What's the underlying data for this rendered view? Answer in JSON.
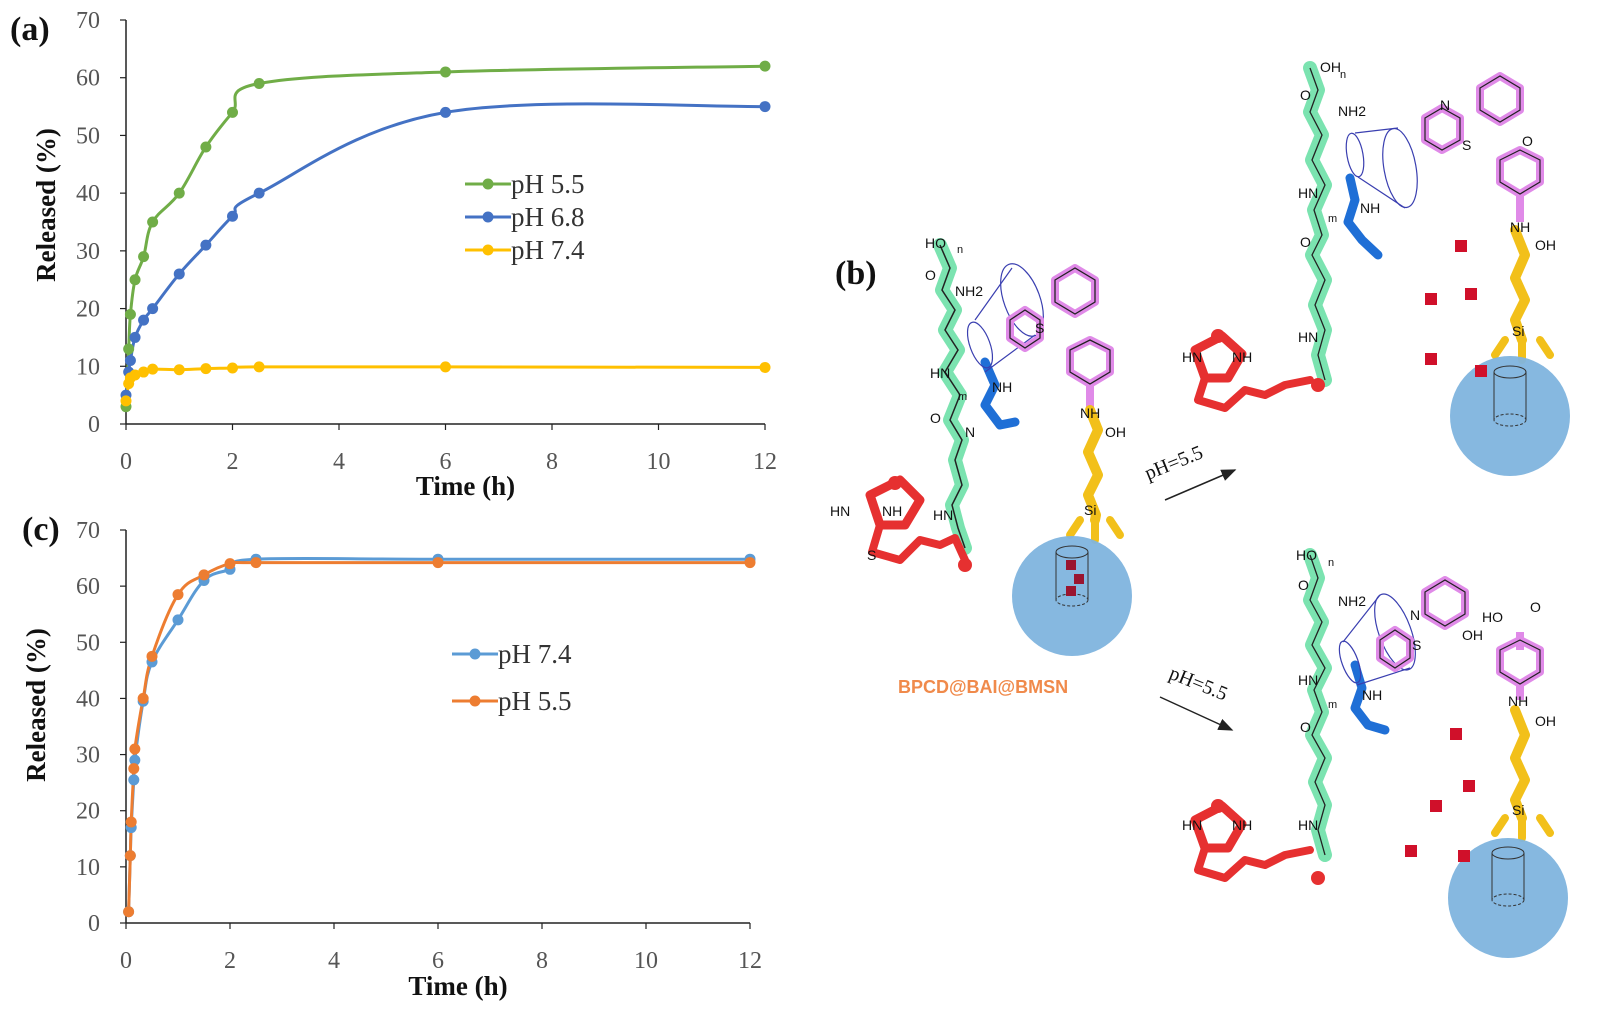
{
  "labels": {
    "panel_a": "(a)",
    "panel_b": "(b)",
    "panel_c": "(c)",
    "compound_name": "BPCD@BAI@BMSN",
    "arrow_top": "pH=5.5",
    "arrow_bottom": "pH=5.5"
  },
  "chem_text": {
    "HO": "HO",
    "OH": "OH",
    "O": "O",
    "NH2": "NH2",
    "NH": "NH",
    "HN": "HN",
    "H": "H",
    "N": "N",
    "S": "S",
    "Si": "Si",
    "m": "m",
    "n": "n"
  },
  "colors": {
    "green_chain": "#7be3b0",
    "blue_linker": "#1f6fd6",
    "magenta_group": "#e08ae8",
    "yellow_group": "#f2c01a",
    "red_biotin": "#e63030",
    "silica_sphere": "#7fb4de",
    "cargo": "#d0102a"
  },
  "chart_data": [
    {
      "id": "a",
      "type": "line",
      "xlabel": "Time (h)",
      "ylabel": "Released (%)",
      "xlim": [
        0,
        12
      ],
      "ylim": [
        0,
        70
      ],
      "xticks": [
        0,
        2,
        4,
        6,
        8,
        10,
        12
      ],
      "yticks": [
        0,
        10,
        20,
        30,
        40,
        50,
        60,
        70
      ],
      "grid": false,
      "legend": "center",
      "series": [
        {
          "name": "pH 5.5",
          "color": "#70ad47",
          "x": [
            0,
            0.05,
            0.083,
            0.17,
            0.33,
            0.5,
            1,
            1.5,
            2,
            2.5,
            6,
            12
          ],
          "y": [
            3,
            13,
            19,
            25,
            29,
            35,
            40,
            48,
            54,
            59,
            61,
            62
          ]
        },
        {
          "name": "pH 6.8",
          "color": "#4472c4",
          "x": [
            0,
            0.05,
            0.083,
            0.17,
            0.33,
            0.5,
            1,
            1.5,
            2,
            2.5,
            6,
            12
          ],
          "y": [
            5,
            9,
            11,
            15,
            18,
            20,
            26,
            31,
            36,
            40,
            54,
            55
          ]
        },
        {
          "name": "pH 7.4",
          "color": "#ffc000",
          "x": [
            0,
            0.05,
            0.083,
            0.17,
            0.33,
            0.5,
            1,
            1.5,
            2,
            2.5,
            6,
            12
          ],
          "y": [
            4,
            7,
            8,
            8.5,
            9,
            9.5,
            9.4,
            9.6,
            9.7,
            9.9,
            9.9,
            9.8
          ]
        }
      ]
    },
    {
      "id": "c",
      "type": "line",
      "xlabel": "Time (h)",
      "ylabel": "Released (%)",
      "xlim": [
        0,
        12
      ],
      "ylim": [
        0,
        70
      ],
      "xticks": [
        0,
        2,
        4,
        6,
        8,
        10,
        12
      ],
      "yticks": [
        0,
        10,
        20,
        30,
        40,
        50,
        60,
        70
      ],
      "grid": false,
      "legend": "center",
      "series": [
        {
          "name": "pH 7.4",
          "color": "#5b9bd5",
          "x": [
            0.05,
            0.083,
            0.1,
            0.15,
            0.17,
            0.33,
            0.5,
            1,
            1.5,
            2,
            2.5,
            6,
            12
          ],
          "y": [
            2,
            12,
            17,
            25.5,
            29,
            39.5,
            46.5,
            54,
            61,
            63,
            64.8,
            64.8,
            64.8
          ]
        },
        {
          "name": "pH 5.5",
          "color": "#ed7d31",
          "x": [
            0.05,
            0.083,
            0.1,
            0.15,
            0.17,
            0.33,
            0.5,
            1,
            1.5,
            2,
            2.5,
            6,
            12
          ],
          "y": [
            2,
            12,
            18,
            27.5,
            31,
            40,
            47.5,
            58.5,
            62,
            64,
            64.2,
            64.2,
            64.2
          ]
        }
      ]
    }
  ]
}
